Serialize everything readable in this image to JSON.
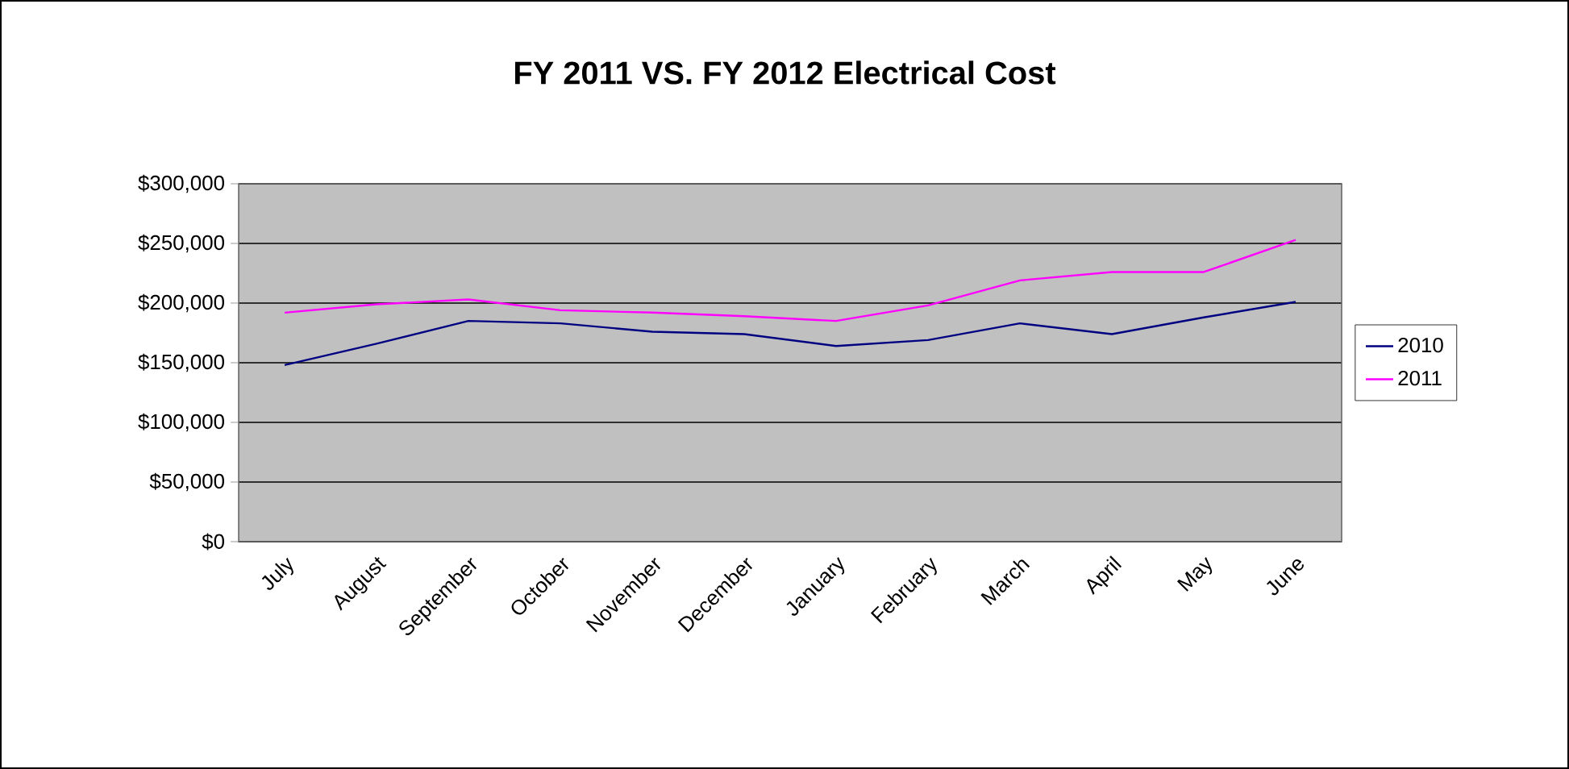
{
  "chart_data": {
    "type": "line",
    "title": "FY 2011 VS. FY 2012 Electrical Cost",
    "categories": [
      "July",
      "August",
      "September",
      "October",
      "November",
      "December",
      "January",
      "February",
      "March",
      "April",
      "May",
      "June"
    ],
    "series": [
      {
        "name": "2010",
        "color": "#000080",
        "values": [
          148000,
          166000,
          185000,
          183000,
          176000,
          174000,
          164000,
          169000,
          183000,
          174000,
          188000,
          201000
        ]
      },
      {
        "name": "2011",
        "color": "#ff00ff",
        "values": [
          192000,
          199000,
          203000,
          194000,
          192000,
          189000,
          185000,
          198000,
          219000,
          226000,
          226000,
          253000
        ]
      }
    ],
    "ylim": [
      0,
      300000
    ],
    "yticks": [
      {
        "value": 0,
        "label": "$0"
      },
      {
        "value": 50000,
        "label": "$50,000"
      },
      {
        "value": 100000,
        "label": "$100,000"
      },
      {
        "value": 150000,
        "label": "$150,000"
      },
      {
        "value": 200000,
        "label": "$200,000"
      },
      {
        "value": 250000,
        "label": "$250,000"
      },
      {
        "value": 300000,
        "label": "$300,000"
      }
    ],
    "grid": "y",
    "legend": "right",
    "marker": "none",
    "line_style": "solid"
  }
}
